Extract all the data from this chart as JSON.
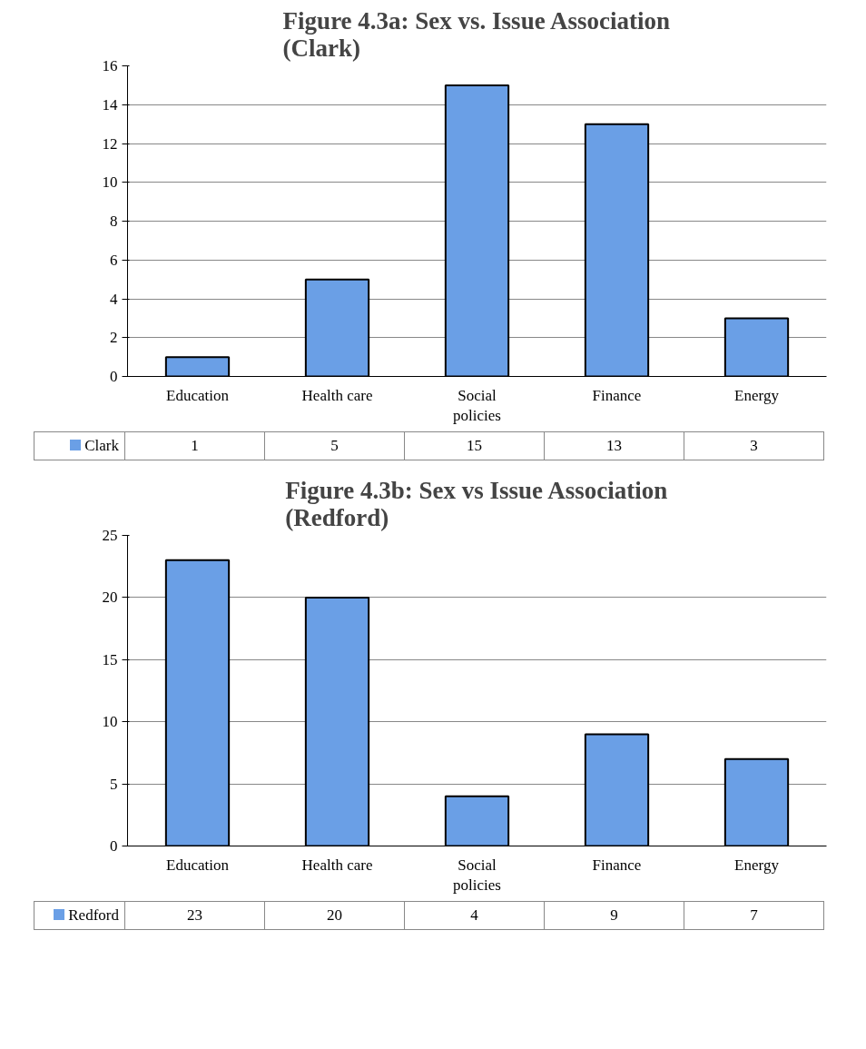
{
  "chart_data": [
    {
      "type": "bar",
      "title": "Figure 4.3a: Sex vs. Issue Association (Clark)",
      "categories": [
        "Education",
        "Health care",
        "Social policies",
        "Finance",
        "Energy"
      ],
      "series": [
        {
          "name": "Clark",
          "color": "#6a9fe6",
          "values": [
            1,
            5,
            15,
            13,
            3
          ]
        }
      ],
      "ylim": [
        0,
        16
      ],
      "yticks": [
        0,
        2,
        4,
        6,
        8,
        10,
        12,
        14,
        16
      ],
      "grid": "y",
      "legend": "bottom",
      "data_labels": true
    },
    {
      "type": "bar",
      "title": "Figure 4.3b: Sex vs Issue Association (Redford)",
      "categories": [
        "Education",
        "Health care",
        "Social policies",
        "Finance",
        "Energy"
      ],
      "series": [
        {
          "name": "Redford",
          "color": "#6a9fe6",
          "values": [
            23,
            20,
            4,
            9,
            7
          ]
        }
      ],
      "ylim": [
        0,
        25
      ],
      "yticks": [
        0,
        5,
        10,
        15,
        20,
        25
      ],
      "grid": "y",
      "legend": "bottom",
      "data_labels": true
    }
  ]
}
